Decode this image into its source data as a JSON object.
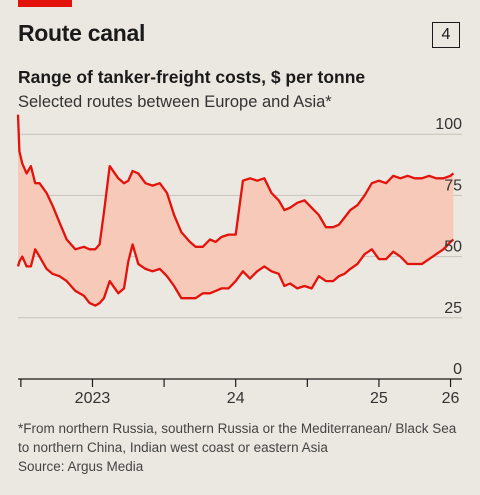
{
  "header": {
    "title": "Route canal",
    "panel_number": "4"
  },
  "subtitle": "Range of tanker-freight costs, $ per tonne",
  "subsubtitle": "Selected routes between Europe and Asia*",
  "footnote": "*From northern Russia, southern Russia or the Mediterranean/ Black Sea to northern China, Indian west coast or eastern Asia",
  "source": "Source: Argus Media",
  "colors": {
    "accent": "#e3120b",
    "band": "#f7c9b8",
    "line": "#e3120b",
    "grid": "#c7c3bb"
  },
  "chart_data": {
    "type": "area",
    "title": "Range of tanker-freight costs, $ per tonne",
    "ylim": [
      0,
      105
    ],
    "yticks": [
      0,
      25,
      50,
      75,
      100
    ],
    "xlim": [
      2022.98,
      2026.08
    ],
    "xticks": [
      {
        "value": 2023.0,
        "label": ""
      },
      {
        "value": 2023.5,
        "label": "2023"
      },
      {
        "value": 2024.0,
        "label": ""
      },
      {
        "value": 2024.5,
        "label": "24"
      },
      {
        "value": 2025.0,
        "label": ""
      },
      {
        "value": 2025.5,
        "label": "25"
      },
      {
        "value": 2026.0,
        "label": "26"
      }
    ],
    "grid": true,
    "series": [
      {
        "name": "",
        "x": [
          2022.98,
          2022.99,
          2023.01,
          2023.04,
          2023.07,
          2023.1,
          2023.13,
          2023.18,
          2023.22,
          2023.27,
          2023.32,
          2023.38,
          2023.44,
          2023.48,
          2023.52,
          2023.55,
          2023.58,
          2023.62,
          2023.68,
          2023.72,
          2023.75,
          2023.78,
          2023.82,
          2023.87,
          2023.92,
          2023.97,
          2024.02,
          2024.07,
          2024.12,
          2024.18,
          2024.22,
          2024.27,
          2024.32,
          2024.36,
          2024.4,
          2024.45,
          2024.5,
          2024.55,
          2024.6,
          2024.65,
          2024.7,
          2024.75,
          2024.8,
          2024.84,
          2024.88,
          2024.93,
          2024.98,
          2025.03,
          2025.08,
          2025.13,
          2025.18,
          2025.22,
          2025.26,
          2025.3,
          2025.35,
          2025.4,
          2025.45,
          2025.5,
          2025.55,
          2025.6,
          2025.65,
          2025.7,
          2025.75,
          2025.8,
          2025.85,
          2025.9,
          2025.95,
          2026.0,
          2026.02
        ],
        "high": [
          108,
          93,
          88,
          84,
          87,
          80,
          80,
          76,
          71,
          64,
          57,
          53,
          54,
          53,
          53,
          55,
          68,
          87,
          82,
          80,
          81,
          85,
          84,
          80,
          79,
          80,
          76,
          67,
          60,
          56,
          54,
          54,
          57,
          56,
          58,
          59,
          59,
          81,
          82,
          81,
          82,
          76,
          73,
          69,
          70,
          72,
          73,
          70,
          67,
          62,
          62,
          63,
          66,
          69,
          71,
          75,
          80,
          81,
          80,
          83,
          82,
          83,
          82,
          82,
          83,
          82,
          82,
          83,
          84
        ],
        "low": [
          46,
          48,
          50,
          46,
          46,
          53,
          50,
          45,
          43,
          42,
          40,
          36,
          34,
          31,
          30,
          31,
          33,
          40,
          35,
          37,
          48,
          55,
          47,
          45,
          44,
          45,
          42,
          38,
          33,
          33,
          33,
          35,
          35,
          36,
          37,
          37,
          40,
          44,
          41,
          44,
          46,
          44,
          43,
          38,
          39,
          37,
          38,
          37,
          42,
          40,
          40,
          42,
          43,
          45,
          47,
          51,
          53,
          49,
          49,
          52,
          50,
          47,
          47,
          47,
          49,
          51,
          53,
          56,
          57
        ]
      }
    ]
  }
}
